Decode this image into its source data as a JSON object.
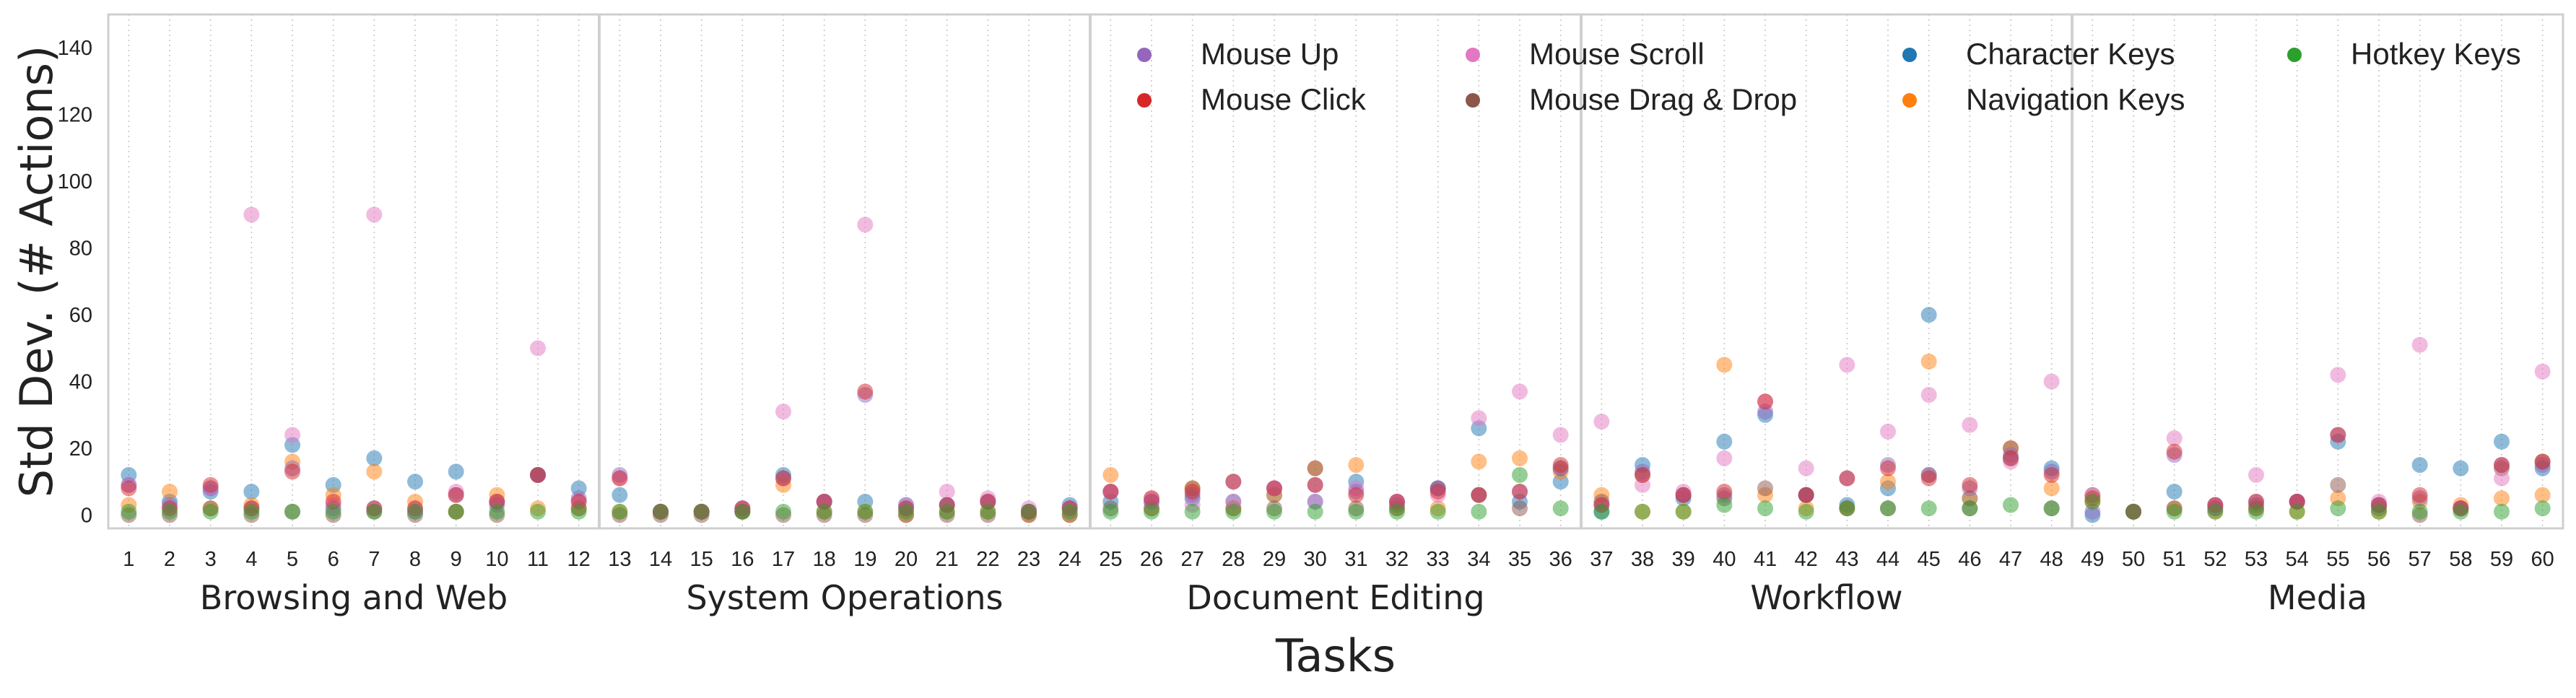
{
  "chart_data": {
    "type": "scatter",
    "xlabel": "Tasks",
    "ylabel": "Std Dev. (# Actions)",
    "ylim": [
      -4,
      150
    ],
    "yticks": [
      0,
      20,
      40,
      60,
      80,
      100,
      120,
      140
    ],
    "tasks": [
      1,
      2,
      3,
      4,
      5,
      6,
      7,
      8,
      9,
      10,
      11,
      12,
      13,
      14,
      15,
      16,
      17,
      18,
      19,
      20,
      21,
      22,
      23,
      24,
      25,
      26,
      27,
      28,
      29,
      30,
      31,
      32,
      33,
      34,
      35,
      36,
      37,
      38,
      39,
      40,
      41,
      42,
      43,
      44,
      45,
      46,
      47,
      48,
      49,
      50,
      51,
      52,
      53,
      54,
      55,
      56,
      57,
      58,
      59,
      60
    ],
    "groups": [
      {
        "label": "Browsing and Web",
        "start": 1,
        "end": 12
      },
      {
        "label": "System Operations",
        "start": 13,
        "end": 24
      },
      {
        "label": "Document Editing",
        "start": 25,
        "end": 36
      },
      {
        "label": "Workflow",
        "start": 37,
        "end": 48
      },
      {
        "label": "Media",
        "start": 49,
        "end": 60
      }
    ],
    "grid": "vertical dotted",
    "legend_position": "top-right",
    "series": [
      {
        "name": "Mouse Up",
        "color": "#9467bd",
        "values": [
          9,
          3,
          8,
          2,
          14,
          2,
          2,
          1,
          6,
          3,
          12,
          5,
          12,
          1,
          1,
          2,
          11,
          4,
          36,
          2,
          3,
          4,
          1,
          2,
          7,
          4,
          6,
          10,
          8,
          9,
          7,
          4,
          8,
          6,
          7,
          14,
          3,
          13,
          6,
          6,
          31,
          6,
          11,
          15,
          12,
          8,
          18,
          13,
          1,
          1,
          18,
          2,
          4,
          4,
          24,
          3,
          5,
          2,
          15,
          15
        ]
      },
      {
        "name": "Mouse Click",
        "color": "#d62728",
        "values": [
          8,
          2,
          9,
          2,
          13,
          4,
          2,
          2,
          6,
          4,
          12,
          4,
          11,
          1,
          1,
          2,
          11,
          4,
          37,
          2,
          3,
          4,
          1,
          2,
          7,
          5,
          7,
          10,
          8,
          9,
          6,
          4,
          7,
          6,
          7,
          15,
          3,
          12,
          6,
          7,
          34,
          6,
          11,
          14,
          11,
          9,
          17,
          12,
          5,
          1,
          19,
          3,
          4,
          4,
          24,
          3,
          6,
          2,
          15,
          16
        ]
      },
      {
        "name": "Mouse Scroll",
        "color": "#e377c2",
        "values": [
          9,
          2,
          8,
          90,
          24,
          3,
          90,
          2,
          7,
          4,
          50,
          4,
          11,
          1,
          1,
          2,
          31,
          4,
          87,
          3,
          7,
          5,
          2,
          2,
          7,
          5,
          3,
          4,
          8,
          4,
          8,
          4,
          6,
          29,
          37,
          24,
          28,
          9,
          7,
          17,
          34,
          14,
          45,
          25,
          36,
          27,
          16,
          40,
          6,
          1,
          23,
          3,
          12,
          4,
          42,
          4,
          51,
          2,
          11,
          43
        ]
      },
      {
        "name": "Mouse Drag & Drop",
        "color": "#8c564b",
        "values": [
          0,
          0,
          2,
          0,
          1,
          0,
          1,
          0,
          1,
          0,
          12,
          2,
          0,
          0,
          0,
          1,
          0,
          0,
          0,
          0,
          0,
          0,
          0,
          0,
          2,
          2,
          8,
          2,
          2,
          14,
          2,
          2,
          8,
          6,
          2,
          14,
          4,
          12,
          6,
          5,
          8,
          6,
          2,
          2,
          12,
          2,
          20,
          2,
          6,
          1,
          2,
          2,
          2,
          4,
          9,
          2,
          0,
          2,
          14,
          16
        ]
      },
      {
        "name": "Character Keys",
        "color": "#1f77b4",
        "values": [
          12,
          4,
          7,
          7,
          21,
          9,
          17,
          10,
          13,
          4,
          12,
          8,
          6,
          1,
          1,
          1,
          12,
          4,
          4,
          3,
          3,
          4,
          1,
          3,
          4,
          4,
          5,
          4,
          6,
          4,
          10,
          3,
          8,
          26,
          4,
          10,
          1,
          15,
          5,
          22,
          30,
          6,
          3,
          8,
          60,
          5,
          17,
          14,
          0,
          1,
          7,
          3,
          3,
          4,
          22,
          3,
          15,
          14,
          22,
          14
        ]
      },
      {
        "name": "Navigation Keys",
        "color": "#ff7f0e",
        "values": [
          3,
          7,
          2,
          3,
          16,
          6,
          13,
          4,
          1,
          6,
          2,
          2,
          1,
          1,
          1,
          1,
          9,
          1,
          1,
          0,
          1,
          1,
          0,
          0,
          12,
          2,
          8,
          2,
          6,
          14,
          15,
          2,
          2,
          16,
          17,
          13,
          6,
          1,
          1,
          45,
          6,
          2,
          2,
          10,
          46,
          5,
          20,
          8,
          4,
          1,
          2,
          1,
          2,
          1,
          5,
          1,
          4,
          3,
          5,
          6
        ]
      },
      {
        "name": "Hotkey Keys",
        "color": "#2ca02c",
        "values": [
          1,
          1,
          1,
          1,
          1,
          1,
          1,
          1,
          1,
          1,
          1,
          1,
          1,
          1,
          1,
          1,
          1,
          1,
          1,
          1,
          1,
          1,
          1,
          1,
          1,
          1,
          1,
          1,
          1,
          1,
          1,
          1,
          1,
          1,
          12,
          2,
          1,
          1,
          1,
          3,
          2,
          1,
          2,
          2,
          2,
          2,
          3,
          2,
          4,
          1,
          1,
          1,
          1,
          1,
          2,
          1,
          1,
          1,
          1,
          2
        ]
      }
    ]
  }
}
